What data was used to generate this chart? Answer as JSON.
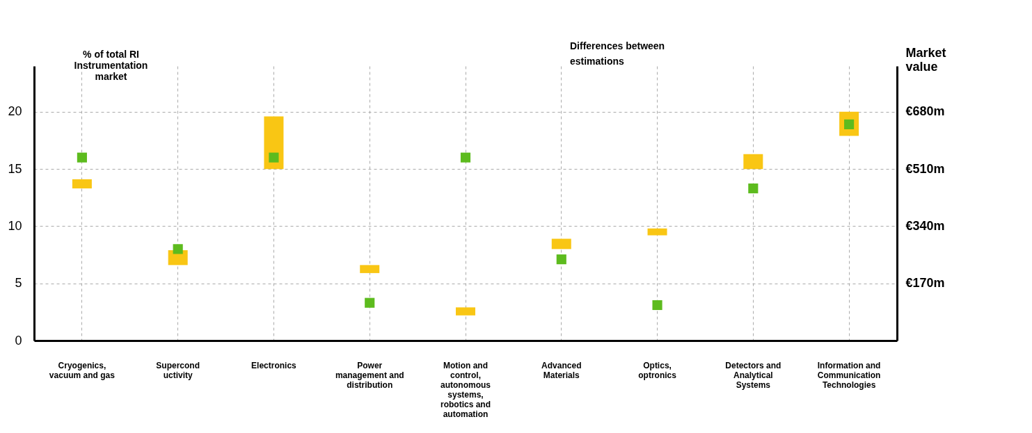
{
  "chart_data": {
    "type": "bar",
    "categories": [
      "Cryogenics, vacuum and gas",
      "Supercond uctivity",
      "Electronics",
      "Power management and distribution",
      "Motion and control, autonomous systems, robotics and automation",
      "Advanced Materials",
      "Optics, optronics",
      "Detectors and Analytical Systems",
      "Information and Communication Technologies"
    ],
    "series": [
      {
        "color": "#f9c614",
        "base": [
          13.3,
          6.6,
          15.0,
          5.9,
          2.2,
          8.0,
          9.2,
          15.0,
          17.9
        ],
        "values": [
          0.8,
          1.3,
          4.6,
          0.7,
          0.7,
          0.9,
          0.6,
          1.3,
          2.1
        ]
      },
      {
        "type": "scatter",
        "color": "#5dbb1e",
        "marker": "square",
        "values": [
          16.0,
          8.0,
          16.0,
          3.3,
          16.0,
          7.1,
          3.1,
          13.3,
          18.9
        ]
      }
    ],
    "ylabel": "% of total RI Instrumentation market",
    "y2label": "Market value",
    "ylim": [
      0,
      24
    ],
    "yticks": [
      0,
      5,
      10,
      15,
      20
    ],
    "y2lim": [
      0,
      816
    ],
    "y2ticks": [
      {
        "value": 170,
        "label": "€170m"
      },
      {
        "value": 340,
        "label": "€340m"
      },
      {
        "value": 510,
        "label": "€510m"
      },
      {
        "value": 680,
        "label": "€680m"
      }
    ],
    "annotations": [
      "Differences between estimations"
    ],
    "grid": true,
    "line_style": "dashed"
  }
}
